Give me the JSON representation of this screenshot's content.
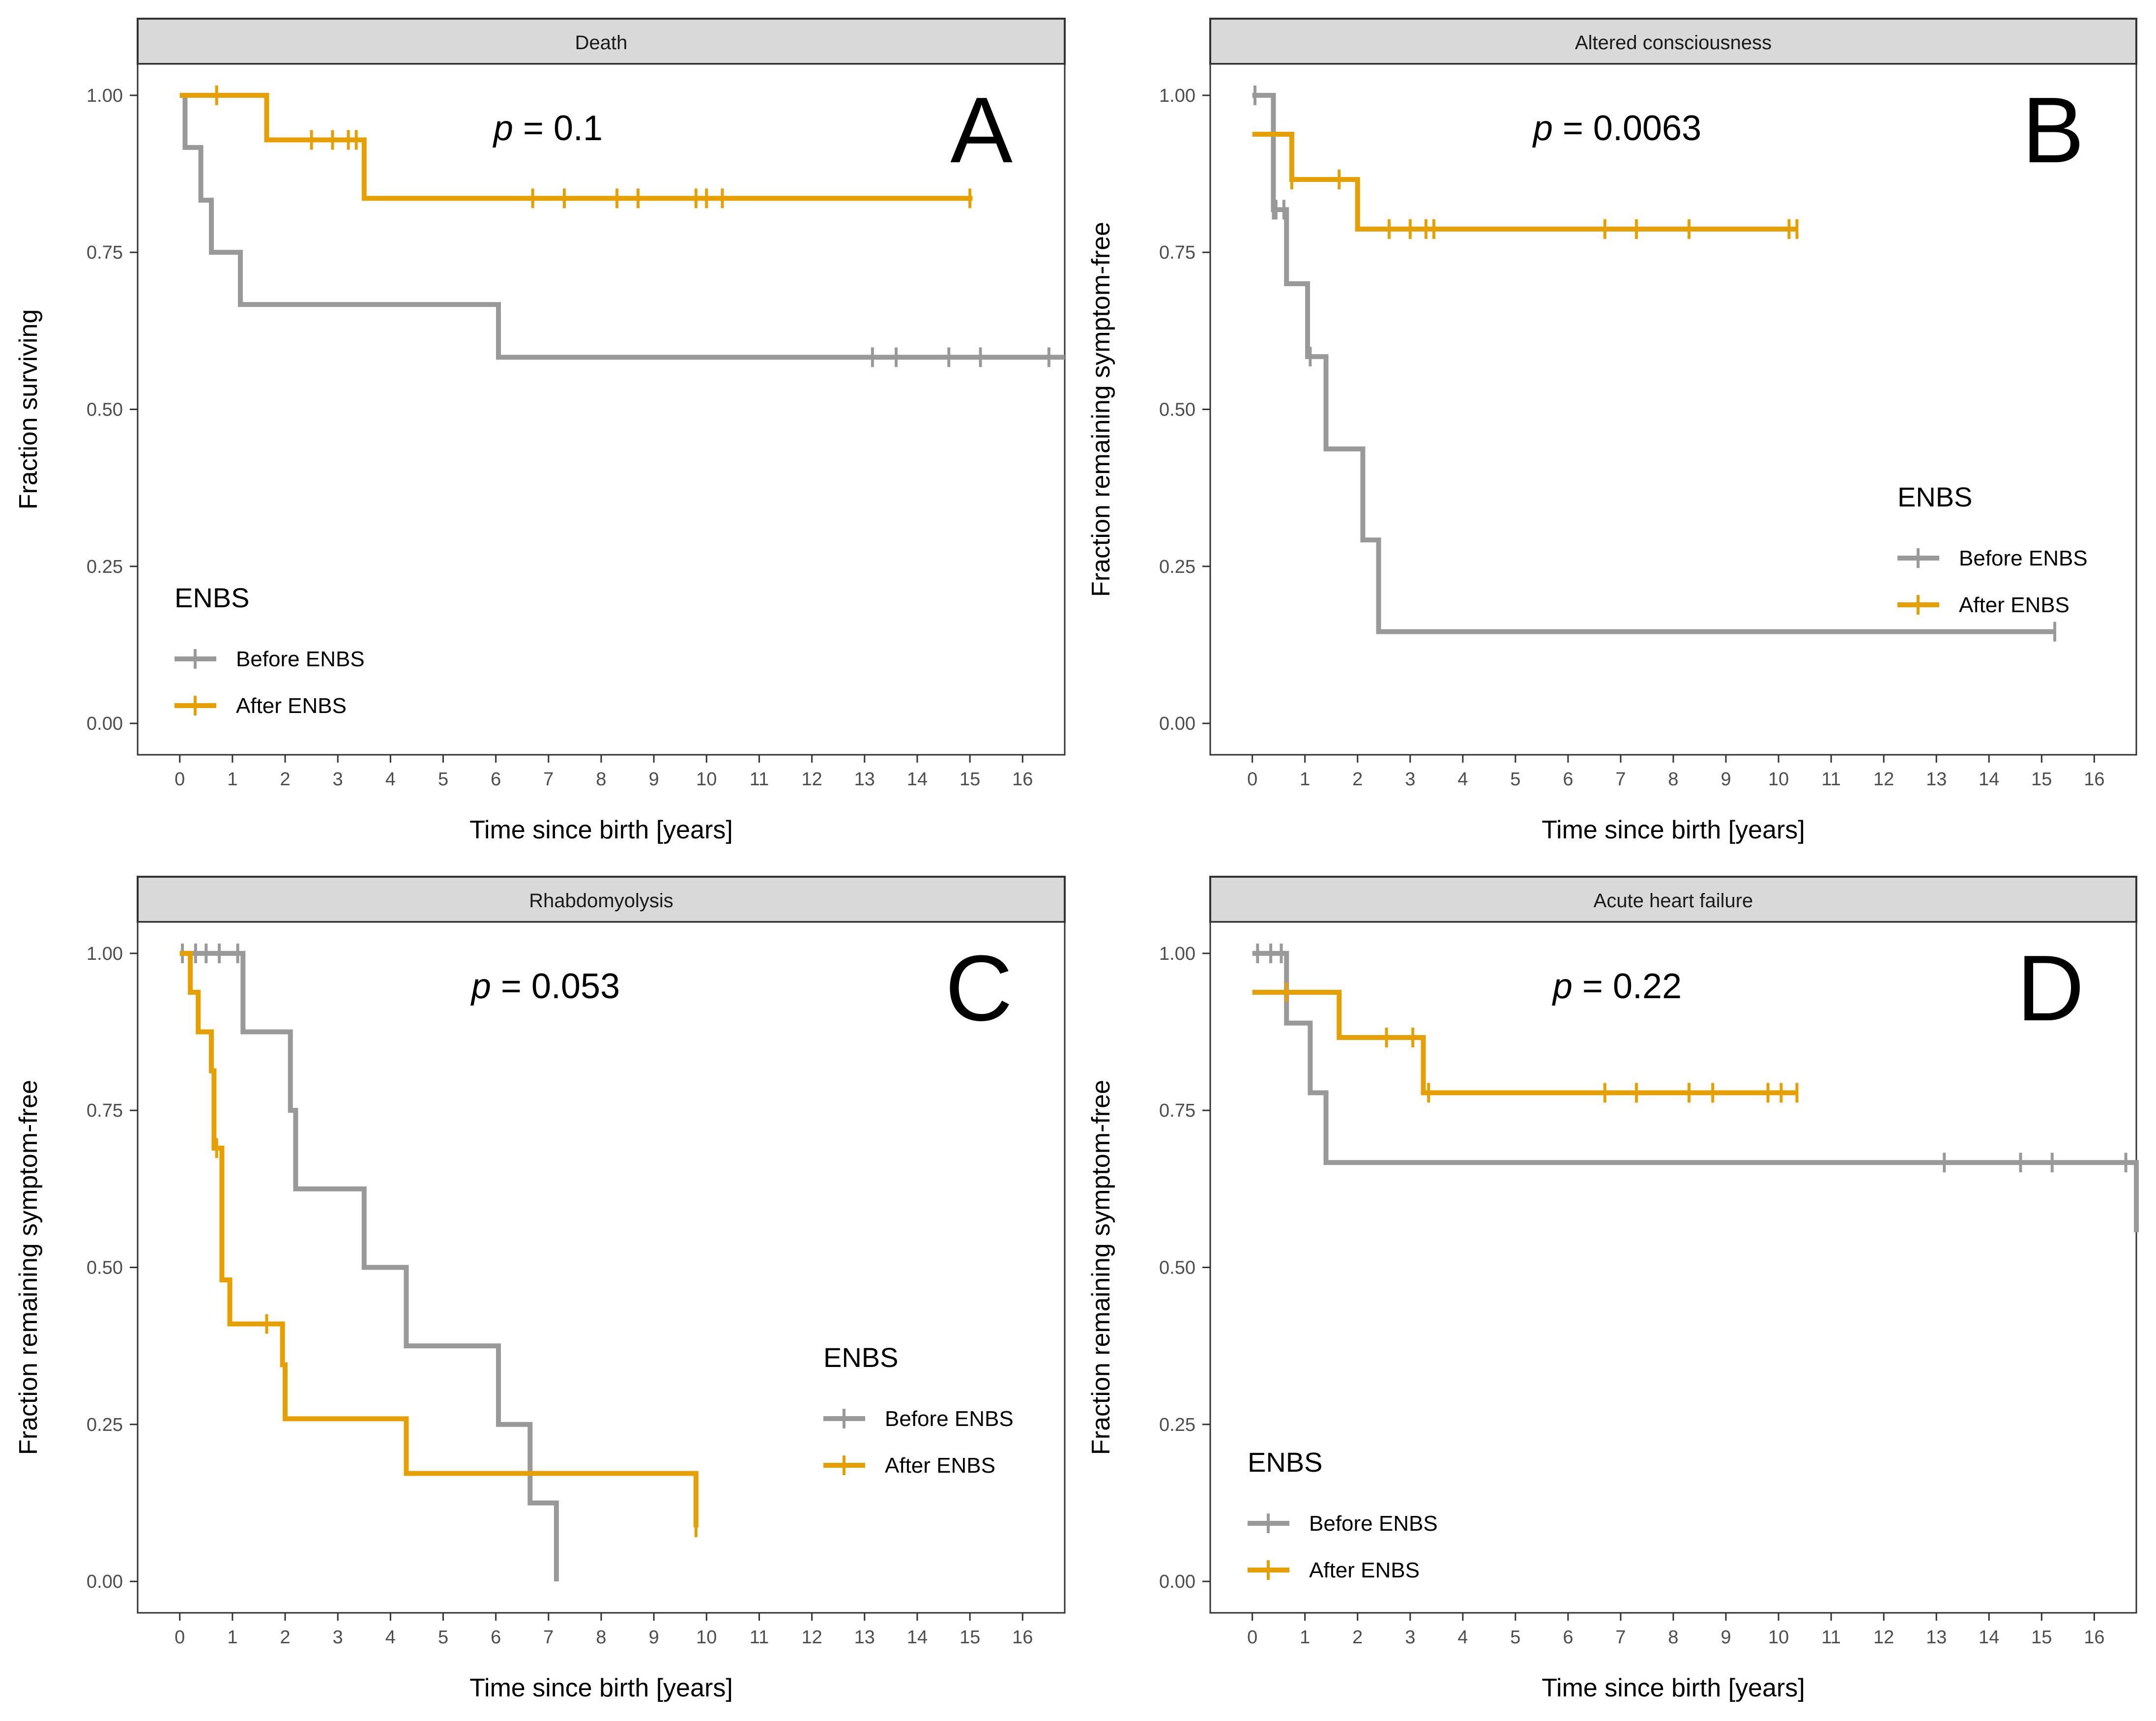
{
  "figure": {
    "legend_title": "ENBS",
    "colors": {
      "before": "#999999",
      "after": "#E69F00",
      "strip": "#D9D9D9",
      "frame": "#333333",
      "tick": "#333333"
    }
  },
  "chart_data": [
    {
      "panel": "A",
      "type": "line",
      "step": "km-survival",
      "strip_title": "Death",
      "pvalue_text": "= 0.1",
      "ylabel": "Fraction surviving",
      "xlabel": "Time since birth [years]",
      "xlim": [
        -0.8,
        16.8
      ],
      "ylim": [
        -0.05,
        1.05
      ],
      "xticks": [
        0,
        1,
        2,
        3,
        4,
        5,
        6,
        7,
        8,
        9,
        10,
        11,
        12,
        13,
        14,
        15,
        16
      ],
      "yticks": [
        "0.00",
        "0.25",
        "0.50",
        "0.75",
        "1.00"
      ],
      "legend_position": "bottom-left",
      "series": [
        {
          "name": "Before ENBS",
          "key": "before",
          "x": [
            0,
            0.1,
            0.4,
            0.6,
            1.15,
            6.05,
            16.8
          ],
          "y": [
            1.0,
            0.917,
            0.833,
            0.75,
            0.667,
            0.583,
            0.583
          ],
          "censor_x": [
            13.15,
            13.6,
            14.6,
            15.2,
            16.5
          ]
        },
        {
          "name": "After ENBS",
          "key": "after",
          "x": [
            0,
            1.65,
            3.5,
            15.05
          ],
          "y": [
            1.0,
            0.929,
            0.836,
            0.836
          ],
          "censor_x": [
            0.7,
            2.5,
            2.9,
            3.2,
            3.35,
            6.7,
            7.3,
            8.3,
            8.7,
            9.8,
            10.0,
            10.3,
            15.0
          ]
        }
      ]
    },
    {
      "panel": "B",
      "type": "line",
      "step": "km-survival",
      "strip_title": "Altered consciousness",
      "pvalue_text": "= 0.0063",
      "ylabel": "Fraction remaining symptom-free",
      "xlabel": "Time since birth [years]",
      "xlim": [
        -0.8,
        16.8
      ],
      "ylim": [
        -0.05,
        1.05
      ],
      "xticks": [
        0,
        1,
        2,
        3,
        4,
        5,
        6,
        7,
        8,
        9,
        10,
        11,
        12,
        13,
        14,
        15,
        16
      ],
      "yticks": [
        "0.00",
        "0.25",
        "0.50",
        "0.75",
        "1.00"
      ],
      "legend_position": "right",
      "series": [
        {
          "name": "Before ENBS",
          "key": "before",
          "x": [
            0,
            0.4,
            0.65,
            1.05,
            1.4,
            2.1,
            2.4,
            15.25
          ],
          "y": [
            1.0,
            0.818,
            0.7,
            0.584,
            0.437,
            0.292,
            0.146,
            0.146
          ],
          "censor_x": [
            0.05,
            0.4,
            0.45,
            0.6,
            1.1,
            15.25
          ]
        },
        {
          "name": "After ENBS",
          "key": "after",
          "x": [
            0,
            0.75,
            2.0,
            10.35
          ],
          "y": [
            0.938,
            0.866,
            0.787,
            0.787
          ],
          "censor_x": [
            0.75,
            1.65,
            2.6,
            3.0,
            3.3,
            3.45,
            6.7,
            7.3,
            8.3,
            10.2,
            10.35
          ]
        }
      ]
    },
    {
      "panel": "C",
      "type": "line",
      "step": "km-survival",
      "strip_title": "Rhabdomyolysis",
      "pvalue_text": "= 0.053",
      "ylabel": "Fraction remaining symptom-free",
      "xlabel": "Time since birth [years]",
      "xlim": [
        -0.8,
        16.8
      ],
      "ylim": [
        -0.05,
        1.05
      ],
      "xticks": [
        0,
        1,
        2,
        3,
        4,
        5,
        6,
        7,
        8,
        9,
        10,
        11,
        12,
        13,
        14,
        15,
        16
      ],
      "yticks": [
        "0.00",
        "0.25",
        "0.50",
        "0.75",
        "1.00"
      ],
      "legend_position": "right",
      "series": [
        {
          "name": "Before ENBS",
          "key": "before",
          "x": [
            0,
            1.2,
            2.1,
            2.2,
            3.5,
            4.3,
            6.05,
            6.65,
            7.15,
            7.15
          ],
          "y": [
            1.0,
            0.875,
            0.75,
            0.625,
            0.5,
            0.375,
            0.25,
            0.125,
            0.0,
            0.0
          ],
          "censor_x": [
            0.05,
            0.3,
            0.5,
            0.75,
            1.1
          ]
        },
        {
          "name": "After ENBS",
          "key": "after",
          "x": [
            0,
            0.2,
            0.35,
            0.6,
            0.65,
            0.8,
            0.95,
            1.95,
            2.0,
            4.3,
            9.8
          ],
          "y": [
            1.0,
            0.938,
            0.875,
            0.813,
            0.69,
            0.48,
            0.41,
            0.345,
            0.259,
            0.172,
            0.086
          ],
          "censor_x": [
            0.7,
            1.65,
            9.8
          ]
        }
      ]
    },
    {
      "panel": "D",
      "type": "line",
      "step": "km-survival",
      "strip_title": "Acute heart failure",
      "pvalue_text": "= 0.22",
      "ylabel": "Fraction remaining symptom-free",
      "xlabel": "Time since birth [years]",
      "xlim": [
        -0.8,
        16.8
      ],
      "ylim": [
        -0.05,
        1.05
      ],
      "xticks": [
        0,
        1,
        2,
        3,
        4,
        5,
        6,
        7,
        8,
        9,
        10,
        11,
        12,
        13,
        14,
        15,
        16
      ],
      "yticks": [
        "0.00",
        "0.25",
        "0.50",
        "0.75",
        "1.00"
      ],
      "legend_position": "bottom-left",
      "series": [
        {
          "name": "Before ENBS",
          "key": "before",
          "x": [
            0,
            0.65,
            1.1,
            1.4,
            16.8
          ],
          "y": [
            1.0,
            0.889,
            0.778,
            0.667,
            0.556
          ],
          "censor_x": [
            0.1,
            0.35,
            0.55,
            13.15,
            14.6,
            15.2,
            16.6
          ]
        },
        {
          "name": "After ENBS",
          "key": "after",
          "x": [
            0,
            1.65,
            3.25,
            10.35
          ],
          "y": [
            0.938,
            0.866,
            0.778,
            0.778
          ],
          "censor_x": [
            0.65,
            2.55,
            3.05,
            3.35,
            6.7,
            7.3,
            8.3,
            8.75,
            9.8,
            10.05,
            10.35
          ]
        }
      ]
    }
  ]
}
